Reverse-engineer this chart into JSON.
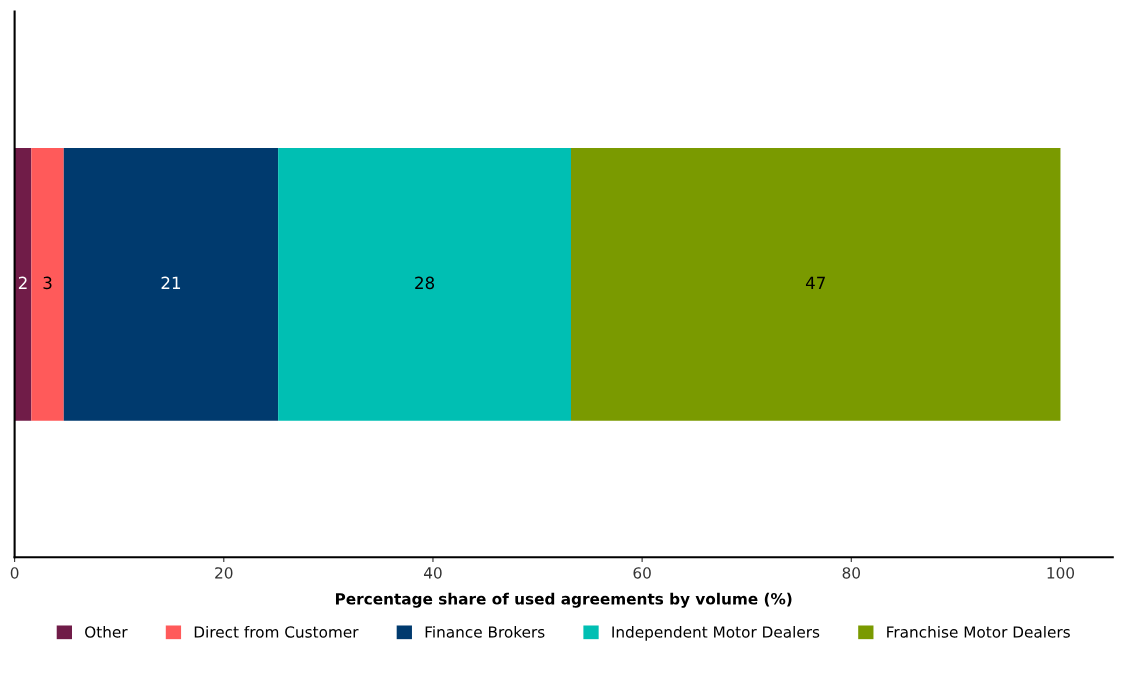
{
  "chart_data": {
    "type": "bar",
    "orientation": "horizontal",
    "stacked": true,
    "categories": [
      null
    ],
    "xlabel": "Percentage share of used agreements by volume (%)",
    "xlim": [
      0,
      105
    ],
    "xticks": [
      0,
      20,
      40,
      60,
      80,
      100
    ],
    "tick_labels": "x",
    "grid": false,
    "legend": "bottom",
    "series": [
      {
        "name": "Other",
        "color": "#701c48",
        "values": [
          1.6
        ],
        "value_labels": [
          "2"
        ]
      },
      {
        "name": "Direct from Customer",
        "color": "#ff5a5a",
        "values": [
          3.1
        ],
        "value_labels": [
          "3"
        ]
      },
      {
        "name": "Finance Brokers",
        "color": "#003a6e",
        "values": [
          20.5
        ],
        "value_labels": [
          "21"
        ]
      },
      {
        "name": "Independent Motor Dealers",
        "color": "#00bfb3",
        "values": [
          28.0
        ],
        "value_labels": [
          "28"
        ]
      },
      {
        "name": "Franchise Motor Dealers",
        "color": "#7a9a00",
        "values": [
          46.8
        ],
        "value_labels": [
          "47"
        ]
      }
    ]
  }
}
